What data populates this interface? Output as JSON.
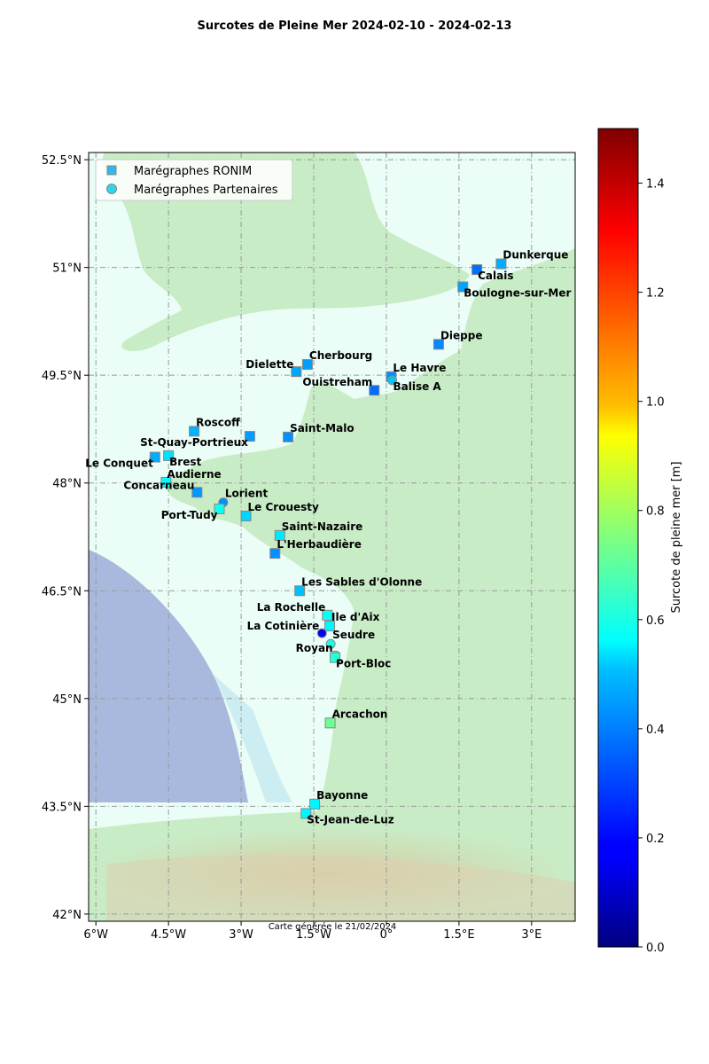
{
  "title": "Surcotes de Pleine Mer 2024-02-10 - 2024-02-13",
  "caption": "Carte générée le 21/02/2024",
  "colors": {
    "sea": "#eafdf6",
    "land_low": "#c8ecc6",
    "land_mid": "#dff1cf",
    "relief": "#dcd0b0",
    "deep_sea": "#a9b9de",
    "shelf_edge": "#bfe6f0",
    "grid": "#999999"
  },
  "map": {
    "x_ticks": [
      {
        "value": -6,
        "label": "6°W"
      },
      {
        "value": -4.5,
        "label": "4.5°W"
      },
      {
        "value": -3,
        "label": "3°W"
      },
      {
        "value": -1.5,
        "label": "1.5°W"
      },
      {
        "value": 0,
        "label": "0°"
      },
      {
        "value": 1.5,
        "label": "1.5°E"
      },
      {
        "value": 3,
        "label": "3°E"
      }
    ],
    "y_ticks": [
      {
        "value": 52.5,
        "label": "52.5°N"
      },
      {
        "value": 51,
        "label": "51°N"
      },
      {
        "value": 49.5,
        "label": "49.5°N"
      },
      {
        "value": 48,
        "label": "48°N"
      },
      {
        "value": 46.5,
        "label": "46.5°N"
      },
      {
        "value": 45,
        "label": "45°N"
      },
      {
        "value": 43.5,
        "label": "43.5°N"
      },
      {
        "value": 42,
        "label": "42°N"
      }
    ]
  },
  "legend": {
    "ronim": "Marégraphes RONIM",
    "partners": "Marégraphes Partenaires"
  },
  "colorbar": {
    "label": "Surcote de pleine mer [m]",
    "min": 0,
    "max": 1.5,
    "colormap": "jet",
    "ticks": [
      {
        "value": 0,
        "label": "0.0"
      },
      {
        "value": 0.2,
        "label": "0.2"
      },
      {
        "value": 0.4,
        "label": "0.4"
      },
      {
        "value": 0.6,
        "label": "0.6"
      },
      {
        "value": 0.8,
        "label": "0.8"
      },
      {
        "value": 1.0,
        "label": "1.0"
      },
      {
        "value": 1.2,
        "label": "1.2"
      },
      {
        "value": 1.4,
        "label": "1.4"
      }
    ]
  },
  "chart_data": {
    "type": "scatter",
    "title": "Surcotes de Pleine Mer 2024-02-10 - 2024-02-13",
    "xlim": [
      -6.15,
      3.9
    ],
    "ylim": [
      41.9,
      52.6
    ],
    "value_label": "Surcote de pleine mer [m]",
    "stations": [
      {
        "name": "Dunkerque",
        "lon": 2.37,
        "lat": 51.05,
        "value": 0.44,
        "kind": "ronim",
        "anchor": "right"
      },
      {
        "name": "Calais",
        "lon": 1.87,
        "lat": 50.97,
        "value": 0.35,
        "kind": "ronim",
        "anchor": "below-right"
      },
      {
        "name": "Boulogne-sur-Mer",
        "lon": 1.58,
        "lat": 50.73,
        "value": 0.43,
        "kind": "ronim",
        "anchor": "below-right"
      },
      {
        "name": "Dieppe",
        "lon": 1.08,
        "lat": 49.93,
        "value": 0.39,
        "kind": "ronim",
        "anchor": "right"
      },
      {
        "name": "Le Havre",
        "lon": 0.1,
        "lat": 49.48,
        "value": 0.4,
        "kind": "ronim",
        "anchor": "right"
      },
      {
        "name": "Balise A",
        "lon": 0.12,
        "lat": 49.43,
        "value": 0.48,
        "kind": "partner",
        "anchor": "below-right"
      },
      {
        "name": "Ouistreham",
        "lon": -0.25,
        "lat": 49.29,
        "value": 0.35,
        "kind": "ronim",
        "anchor": "above-left"
      },
      {
        "name": "Cherbourg",
        "lon": -1.63,
        "lat": 49.65,
        "value": 0.42,
        "kind": "ronim",
        "anchor": "right"
      },
      {
        "name": "Dielette",
        "lon": -1.86,
        "lat": 49.55,
        "value": 0.43,
        "kind": "ronim",
        "anchor": "left"
      },
      {
        "name": "Saint-Malo",
        "lon": -2.03,
        "lat": 48.64,
        "value": 0.4,
        "kind": "ronim",
        "anchor": "right"
      },
      {
        "name": "St-Quay-Portrieux",
        "lon": -2.82,
        "lat": 48.65,
        "value": 0.42,
        "kind": "ronim",
        "anchor": "below-left"
      },
      {
        "name": "Roscoff",
        "lon": -3.97,
        "lat": 48.72,
        "value": 0.45,
        "kind": "ronim",
        "anchor": "right"
      },
      {
        "name": "Brest",
        "lon": -4.5,
        "lat": 48.38,
        "value": 0.52,
        "kind": "ronim",
        "anchor": "below-right"
      },
      {
        "name": "Le Conquet",
        "lon": -4.78,
        "lat": 48.36,
        "value": 0.44,
        "kind": "ronim",
        "anchor": "below-left"
      },
      {
        "name": "Audierne",
        "lon": -4.55,
        "lat": 48.01,
        "value": 0.56,
        "kind": "ronim",
        "anchor": "above-right"
      },
      {
        "name": "Concarneau",
        "lon": -3.91,
        "lat": 47.87,
        "value": 0.41,
        "kind": "ronim",
        "anchor": "left"
      },
      {
        "name": "Lorient",
        "lon": -3.37,
        "lat": 47.73,
        "value": 0.4,
        "kind": "partner",
        "anchor": "right"
      },
      {
        "name": "Port-Tudy",
        "lon": -3.45,
        "lat": 47.64,
        "value": 0.58,
        "kind": "ronim",
        "anchor": "below-left"
      },
      {
        "name": "Le Crouesty",
        "lon": -2.9,
        "lat": 47.54,
        "value": 0.5,
        "kind": "ronim",
        "anchor": "right"
      },
      {
        "name": "Saint-Nazaire",
        "lon": -2.2,
        "lat": 47.27,
        "value": 0.53,
        "kind": "ronim",
        "anchor": "right"
      },
      {
        "name": "L'Herbaudière",
        "lon": -2.3,
        "lat": 47.02,
        "value": 0.4,
        "kind": "ronim",
        "anchor": "right"
      },
      {
        "name": "Les Sables d'Olonne",
        "lon": -1.79,
        "lat": 46.5,
        "value": 0.47,
        "kind": "ronim",
        "anchor": "right"
      },
      {
        "name": "La Rochelle",
        "lon": -1.22,
        "lat": 46.16,
        "value": 0.58,
        "kind": "ronim",
        "anchor": "above-left"
      },
      {
        "name": "Ile d'Aix",
        "lon": -1.17,
        "lat": 46.01,
        "value": 0.55,
        "kind": "ronim",
        "anchor": "right"
      },
      {
        "name": "La Cotinière",
        "lon": -1.33,
        "lat": 45.91,
        "value": 0.18,
        "kind": "partner",
        "anchor": "left"
      },
      {
        "name": "Seudre",
        "lon": -1.15,
        "lat": 45.76,
        "value": 0.6,
        "kind": "partner",
        "anchor": "right"
      },
      {
        "name": "Royan",
        "lon": -1.05,
        "lat": 45.6,
        "value": 0.68,
        "kind": "partner",
        "anchor": "left"
      },
      {
        "name": "Port-Bloc",
        "lon": -1.06,
        "lat": 45.57,
        "value": 0.62,
        "kind": "ronim",
        "anchor": "below-right"
      },
      {
        "name": "Arcachon",
        "lon": -1.16,
        "lat": 44.66,
        "value": 0.72,
        "kind": "ronim",
        "anchor": "right"
      },
      {
        "name": "Bayonne",
        "lon": -1.48,
        "lat": 43.53,
        "value": 0.55,
        "kind": "ronim",
        "anchor": "right"
      },
      {
        "name": "St-Jean-de-Luz",
        "lon": -1.66,
        "lat": 43.4,
        "value": 0.55,
        "kind": "ronim",
        "anchor": "below-right"
      }
    ]
  }
}
